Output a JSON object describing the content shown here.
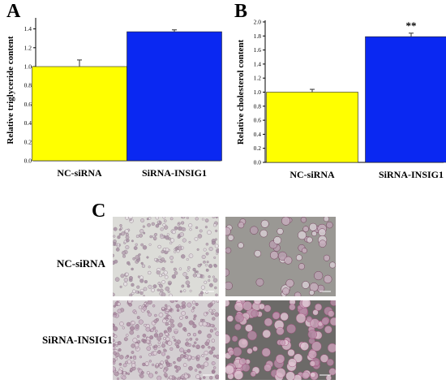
{
  "panels": {
    "a": "A",
    "b": "B",
    "c": "C"
  },
  "panel_c": {
    "row_labels": [
      "NC-siRNA",
      "SiRNA-INSIG1"
    ]
  },
  "chart_data": [
    {
      "type": "bar",
      "panel": "A",
      "title": "",
      "xlabel": "",
      "ylabel": "Relative triglyceride content",
      "categories": [
        "NC-siRNA",
        "SiRNA-INSIG1"
      ],
      "values": [
        1.0,
        1.37
      ],
      "errors": [
        0.07,
        0.02
      ],
      "colors": [
        "#ffff00",
        "#0a28f2"
      ],
      "ylim": [
        0.0,
        1.5
      ],
      "yticks": [
        "0.0",
        "0.2",
        "0.4",
        "0.6",
        "0.8",
        "1.0",
        "1.2",
        "1.4"
      ],
      "grid": false,
      "annotations": []
    },
    {
      "type": "bar",
      "panel": "B",
      "title": "",
      "xlabel": "",
      "ylabel": "Relative cholesterol content",
      "categories": [
        "NC-siRNA",
        "SiRNA-INSIG1"
      ],
      "values": [
        1.0,
        1.79
      ],
      "errors": [
        0.04,
        0.05
      ],
      "colors": [
        "#ffff00",
        "#0a28f2"
      ],
      "ylim": [
        0.0,
        2.0
      ],
      "yticks": [
        "0.0",
        "0.2",
        "0.4",
        "0.6",
        "0.8",
        "1.0",
        "1.2",
        "1.4",
        "1.6",
        "1.8",
        "2.0"
      ],
      "grid": false,
      "annotations": [
        "",
        "**"
      ]
    }
  ]
}
